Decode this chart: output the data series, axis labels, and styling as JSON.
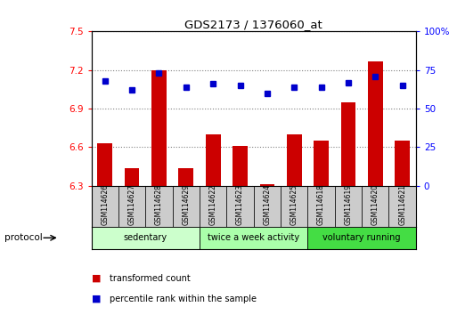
{
  "title": "GDS2173 / 1376060_at",
  "categories": [
    "GSM114626",
    "GSM114627",
    "GSM114628",
    "GSM114629",
    "GSM114622",
    "GSM114623",
    "GSM114624",
    "GSM114625",
    "GSM114618",
    "GSM114619",
    "GSM114620",
    "GSM114621"
  ],
  "bar_values": [
    6.63,
    6.44,
    7.2,
    6.44,
    6.7,
    6.61,
    6.31,
    6.7,
    6.65,
    6.95,
    7.27,
    6.65
  ],
  "dot_values": [
    68,
    62,
    73,
    64,
    66,
    65,
    60,
    64,
    64,
    67,
    71,
    65
  ],
  "bar_color": "#cc0000",
  "dot_color": "#0000cc",
  "ylim_left": [
    6.3,
    7.5
  ],
  "ylim_right": [
    0,
    100
  ],
  "yticks_left": [
    6.3,
    6.6,
    6.9,
    7.2,
    7.5
  ],
  "yticks_right": [
    0,
    25,
    50,
    75,
    100
  ],
  "ytick_labels_right": [
    "0",
    "25",
    "50",
    "75",
    "100%"
  ],
  "bar_bottom": 6.3,
  "groups": [
    {
      "label": "sedentary",
      "start": 0,
      "end": 4,
      "color": "#ccffcc"
    },
    {
      "label": "twice a week activity",
      "start": 4,
      "end": 8,
      "color": "#aaffaa"
    },
    {
      "label": "voluntary running",
      "start": 8,
      "end": 12,
      "color": "#44dd44"
    }
  ],
  "protocol_label": "protocol",
  "legend_items": [
    {
      "label": "transformed count",
      "color": "#cc0000"
    },
    {
      "label": "percentile rank within the sample",
      "color": "#0000cc"
    }
  ],
  "bar_width": 0.55,
  "xlabel_box_color": "#cccccc",
  "n_categories": 12
}
